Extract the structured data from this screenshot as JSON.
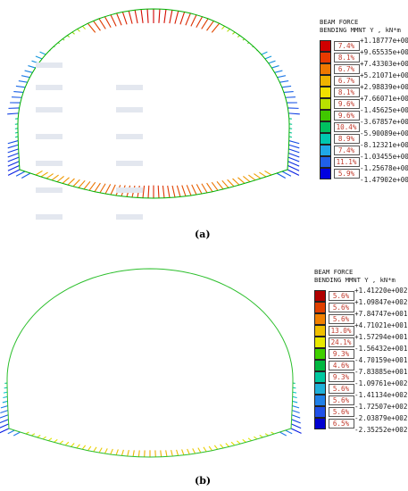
{
  "panels": [
    {
      "id": "a",
      "caption": "(a)",
      "legend": {
        "title_line1": "BEAM FORCE",
        "title_line2": "BENDING MMNT Y , kN*m",
        "colors": [
          "#d00000",
          "#e83a00",
          "#f07800",
          "#f0b400",
          "#f0e000",
          "#b8e000",
          "#40c800",
          "#00c060",
          "#00c8b0",
          "#20a8e8",
          "#2060e8",
          "#0000e0"
        ],
        "percents": [
          "7.4%",
          "8.1%",
          "6.7%",
          "6.7%",
          "8.1%",
          "9.6%",
          "9.6%",
          "10.4%",
          "8.9%",
          "7.4%",
          "11.1%",
          "5.9%"
        ],
        "values": [
          "+1.18777e+002",
          "+9.65535e+001",
          "+7.43303e+001",
          "+5.21071e+001",
          "+2.98839e+001",
          "+7.66071e+000",
          "-1.45625e+001",
          "-3.67857e+001",
          "-5.90089e+001",
          "-8.12321e+001",
          "-1.03455e+002",
          "-1.25678e+002",
          "-1.47902e+002"
        ]
      }
    },
    {
      "id": "b",
      "caption": "(b)",
      "legend": {
        "title_line1": "BEAM FORCE",
        "title_line2": "BENDING MMNT Y , kN*m",
        "colors": [
          "#b00000",
          "#e04000",
          "#f08000",
          "#f0c000",
          "#e8e800",
          "#40d000",
          "#00b840",
          "#00c8a0",
          "#20b0d8",
          "#2080e8",
          "#2050e8",
          "#0000d0"
        ],
        "percents": [
          "5.6%",
          "5.6%",
          "5.6%",
          "13.0%",
          "24.1%",
          "9.3%",
          "4.6%",
          "9.3%",
          "5.6%",
          "5.6%",
          "5.6%",
          "6.5%"
        ],
        "values": [
          "+1.41220e+002",
          "+1.09847e+002",
          "+7.84747e+001",
          "+4.71021e+001",
          "+1.57294e+001",
          "-1.56432e+001",
          "-4.70159e+001",
          "-7.83885e+001",
          "-1.09761e+002",
          "-1.41134e+002",
          "-1.72507e+002",
          "-2.03879e+002",
          "-2.35252e+002"
        ]
      }
    }
  ]
}
